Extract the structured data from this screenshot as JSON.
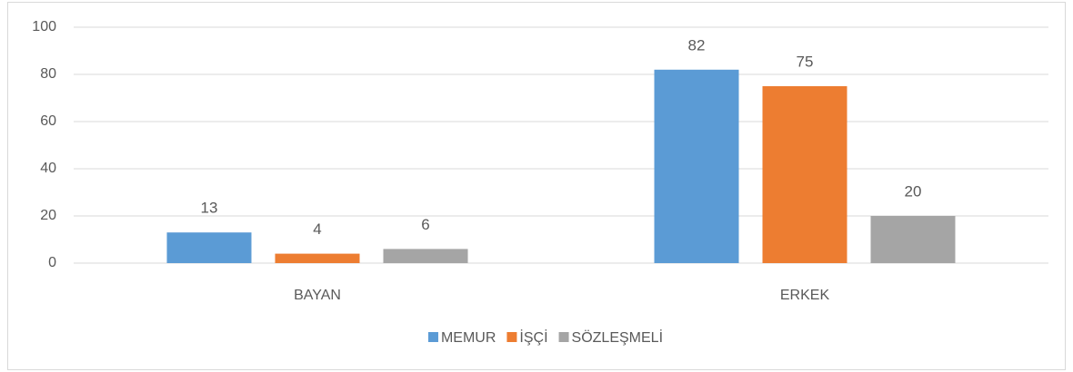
{
  "chart_data": {
    "type": "bar",
    "categories": [
      "BAYAN",
      "ERKEK"
    ],
    "series": [
      {
        "name": "MEMUR",
        "color": "#5b9bd5",
        "values": [
          13,
          82
        ]
      },
      {
        "name": "İŞÇİ",
        "color": "#ed7d31",
        "values": [
          4,
          75
        ]
      },
      {
        "name": "SÖZLEŞMELİ",
        "color": "#a5a5a5",
        "values": [
          6,
          20
        ]
      }
    ],
    "ylim": [
      0,
      100
    ],
    "yticks": [
      0,
      20,
      40,
      60,
      80,
      100
    ],
    "grid": true,
    "legend": "bottom"
  }
}
